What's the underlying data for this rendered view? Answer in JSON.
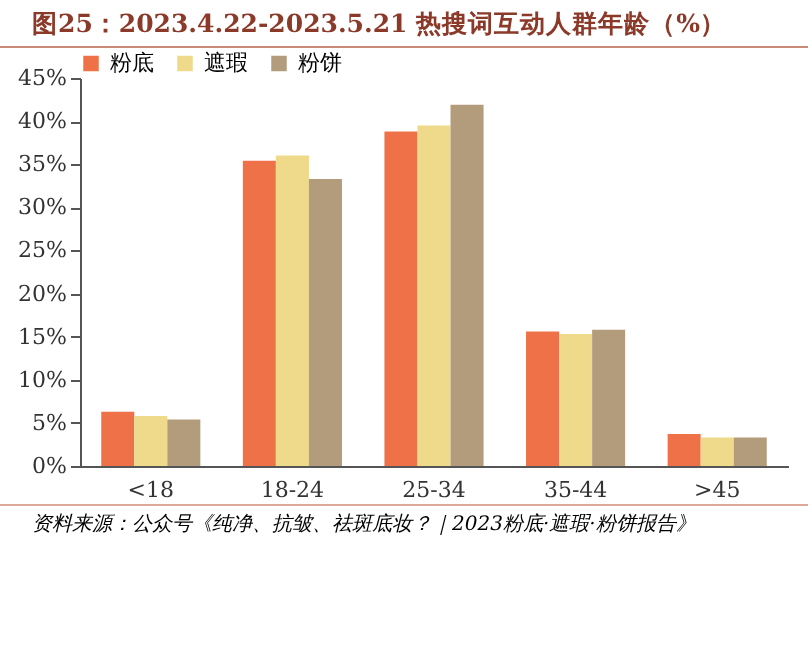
{
  "chart_data": {
    "type": "bar",
    "title": "图25：2023.4.22-2023.5.21 热搜词互动人群年龄（%）",
    "categories": [
      "<18",
      "18-24",
      "25-34",
      "35-44",
      ">45"
    ],
    "series": [
      {
        "name": "粉底",
        "color": "#ee7148",
        "values": [
          6.3,
          35.4,
          38.8,
          15.6,
          3.7
        ]
      },
      {
        "name": "遮瑕",
        "color": "#efd98a",
        "values": [
          5.8,
          36.0,
          39.5,
          15.3,
          3.3
        ]
      },
      {
        "name": "粉饼",
        "color": "#b39c7b",
        "values": [
          5.4,
          33.3,
          41.9,
          15.8,
          3.3
        ]
      }
    ],
    "ylim": [
      0,
      45
    ],
    "yticks": [
      {
        "value": 0,
        "label": "0%"
      },
      {
        "value": 5,
        "label": "5%"
      },
      {
        "value": 10,
        "label": "10%"
      },
      {
        "value": 15,
        "label": "15%"
      },
      {
        "value": 20,
        "label": "20%"
      },
      {
        "value": 25,
        "label": "25%"
      },
      {
        "value": 30,
        "label": "30%"
      },
      {
        "value": 35,
        "label": "35%"
      },
      {
        "value": 40,
        "label": "40%"
      },
      {
        "value": 45,
        "label": "45%"
      }
    ],
    "grid": false,
    "legend": "top",
    "annotations": [
      "资料来源：公众号《纯净、抗皱、祛斑底妆？｜2023粉底·遮瑕·粉饼报告》"
    ]
  }
}
